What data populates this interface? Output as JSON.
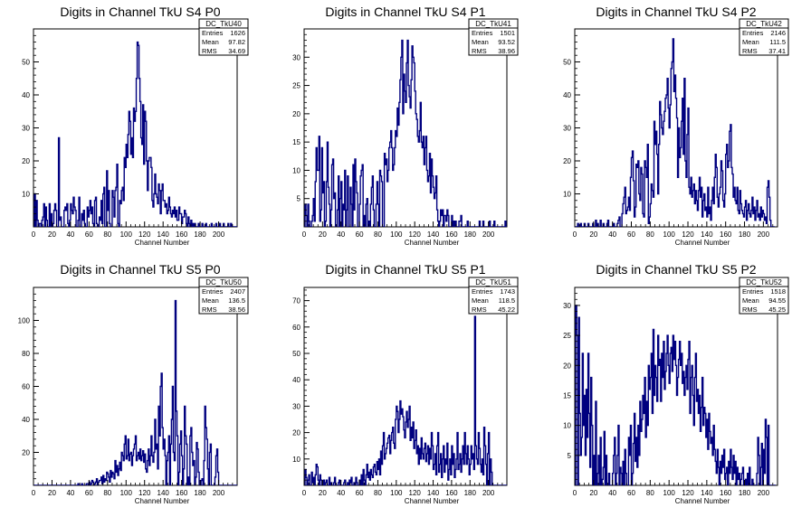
{
  "colors": {
    "line": "#00007f",
    "axis": "#000000",
    "box_border": "#000000",
    "background": "#ffffff"
  },
  "chart_data": [
    {
      "type": "histogram",
      "title": "Digits in Channel TkU S4 P0",
      "xlabel": "Channel Number",
      "xlim": [
        0,
        220
      ],
      "ylim": [
        0,
        60
      ],
      "x_ticks": [
        0,
        20,
        40,
        60,
        80,
        100,
        120,
        140,
        160,
        180,
        200
      ],
      "y_ticks": [
        10,
        20,
        30,
        40,
        50
      ],
      "stats": {
        "name": "DC_TkU40",
        "rows": [
          [
            "Entries",
            "1626"
          ],
          [
            "Mean",
            "97.82"
          ],
          [
            "RMS",
            "34.69"
          ]
        ]
      },
      "values": [
        0,
        10,
        0,
        8,
        2,
        0,
        1,
        1,
        0,
        2,
        3,
        7,
        0,
        6,
        2,
        0,
        0,
        7,
        0,
        4,
        0,
        1,
        5,
        7,
        5,
        0,
        0,
        27,
        2,
        3,
        0,
        0,
        0,
        5,
        6,
        5,
        7,
        1,
        0,
        2,
        7,
        5,
        4,
        9,
        6,
        5,
        0,
        0,
        2,
        9,
        0,
        0,
        4,
        2,
        5,
        1,
        0,
        0,
        6,
        3,
        5,
        8,
        4,
        6,
        1,
        0,
        8,
        9,
        1,
        0,
        0,
        3,
        2,
        8,
        1,
        10,
        12,
        0,
        0,
        17,
        5,
        11,
        1,
        0,
        0,
        11,
        9,
        3,
        11,
        12,
        19,
        1,
        0,
        8,
        7,
        11,
        12,
        8,
        21,
        18,
        25,
        21,
        28,
        35,
        32,
        22,
        27,
        21,
        36,
        32,
        35,
        45,
        56,
        55,
        45,
        38,
        27,
        25,
        37,
        19,
        35,
        32,
        20,
        11,
        20,
        21,
        21,
        18,
        8,
        6,
        10,
        16,
        10,
        9,
        7,
        13,
        11,
        4,
        11,
        13,
        8,
        8,
        6,
        7,
        4,
        5,
        9,
        6,
        4,
        3,
        5,
        4,
        6,
        3,
        5,
        2,
        2,
        6,
        4,
        4,
        1,
        3,
        3,
        5,
        4,
        1,
        0,
        3,
        1,
        0,
        2,
        0,
        1,
        0,
        1,
        0,
        0,
        0,
        1,
        0,
        0,
        0,
        1,
        0,
        0,
        0,
        1,
        0,
        0,
        0,
        0,
        0,
        1,
        0,
        0,
        0,
        0,
        1,
        0,
        0,
        0,
        1,
        0,
        0,
        0,
        1,
        0,
        0,
        0,
        0,
        1,
        0,
        0,
        1,
        0,
        0,
        0,
        0,
        0,
        0,
        0
      ]
    },
    {
      "type": "histogram",
      "title": "Digits in Channel TkU S4 P1",
      "xlabel": "Channel Number",
      "xlim": [
        0,
        220
      ],
      "ylim": [
        0,
        35
      ],
      "x_ticks": [
        0,
        20,
        40,
        60,
        80,
        100,
        120,
        140,
        160,
        180,
        200
      ],
      "y_ticks": [
        5,
        10,
        15,
        20,
        25,
        30
      ],
      "stats": {
        "name": "DC_TkU41",
        "rows": [
          [
            "Entries",
            "1501"
          ],
          [
            "Mean",
            "93.52"
          ],
          [
            "RMS",
            "38.96"
          ]
        ]
      },
      "values": [
        0,
        4,
        2,
        0,
        4,
        1,
        0,
        0,
        1,
        2,
        5,
        1,
        8,
        14,
        10,
        10,
        16,
        1,
        3,
        14,
        6,
        8,
        0,
        1,
        8,
        15,
        7,
        4,
        0,
        3,
        11,
        12,
        5,
        6,
        0,
        0,
        3,
        9,
        0,
        5,
        8,
        0,
        4,
        3,
        10,
        0,
        3,
        9,
        0,
        0,
        7,
        4,
        0,
        11,
        3,
        12,
        8,
        6,
        0,
        0,
        4,
        9,
        10,
        11,
        0,
        2,
        0,
        4,
        5,
        0,
        1,
        0,
        4,
        7,
        9,
        3,
        0,
        0,
        4,
        8,
        4,
        0,
        10,
        9,
        8,
        0,
        0,
        13,
        11,
        12,
        8,
        10,
        14,
        15,
        17,
        14,
        10,
        11,
        14,
        17,
        16,
        21,
        18,
        22,
        26,
        30,
        33,
        20,
        27,
        24,
        22,
        29,
        33,
        25,
        23,
        21,
        26,
        32,
        30,
        29,
        24,
        20,
        19,
        16,
        15,
        17,
        22,
        15,
        14,
        16,
        11,
        14,
        16,
        10,
        8,
        9,
        13,
        6,
        12,
        9,
        7,
        5,
        6,
        9,
        3,
        1,
        0,
        1,
        3,
        2,
        3,
        0,
        2,
        2,
        1,
        3,
        2,
        0,
        0,
        0,
        2,
        0,
        1,
        0,
        1,
        0,
        0,
        0,
        1,
        1,
        2,
        0,
        0,
        0,
        0,
        0,
        0,
        1,
        0,
        0,
        0,
        0,
        0,
        0,
        0,
        0,
        0,
        0,
        0,
        0,
        1,
        0,
        0,
        0,
        1,
        0,
        0,
        0,
        0,
        0,
        0,
        1,
        0,
        0,
        0,
        0,
        1,
        0,
        0,
        0,
        0,
        0,
        0,
        0,
        0,
        0,
        0,
        0,
        1,
        0,
        0,
        0
      ]
    },
    {
      "type": "histogram",
      "title": "Digits in Channel TkU S4 P2",
      "xlabel": "Channel Number",
      "xlim": [
        0,
        215
      ],
      "ylim": [
        0,
        60
      ],
      "x_ticks": [
        0,
        20,
        40,
        60,
        80,
        100,
        120,
        140,
        160,
        180,
        200
      ],
      "y_ticks": [
        10,
        20,
        30,
        40,
        50
      ],
      "stats": {
        "name": "DC_TkU42",
        "rows": [
          [
            "Entries",
            "2146"
          ],
          [
            "Mean",
            "111.5"
          ],
          [
            "RMS",
            "37.41"
          ]
        ]
      },
      "values": [
        0,
        0,
        0,
        1,
        0,
        0,
        1,
        0,
        0,
        0,
        1,
        0,
        0,
        0,
        1,
        0,
        0,
        0,
        0,
        1,
        0,
        0,
        2,
        0,
        1,
        0,
        0,
        2,
        0,
        0,
        1,
        0,
        0,
        0,
        1,
        2,
        0,
        0,
        0,
        0,
        0,
        1,
        0,
        0,
        0,
        1,
        2,
        3,
        0,
        0,
        4,
        7,
        9,
        12,
        4,
        5,
        6,
        9,
        5,
        15,
        21,
        23,
        14,
        3,
        6,
        19,
        18,
        20,
        10,
        8,
        18,
        16,
        4,
        3,
        20,
        18,
        15,
        25,
        1,
        3,
        7,
        13,
        11,
        9,
        32,
        25,
        29,
        22,
        10,
        25,
        38,
        34,
        30,
        28,
        32,
        35,
        39,
        40,
        45,
        36,
        30,
        37,
        48,
        50,
        57,
        41,
        46,
        39,
        33,
        15,
        30,
        21,
        24,
        32,
        39,
        22,
        45,
        20,
        15,
        28,
        36,
        12,
        10,
        15,
        9,
        11,
        13,
        7,
        11,
        8,
        5,
        11,
        15,
        9,
        12,
        3,
        8,
        10,
        5,
        6,
        3,
        12,
        4,
        6,
        2,
        8,
        12,
        7,
        15,
        22,
        18,
        9,
        6,
        10,
        12,
        20,
        17,
        8,
        6,
        10,
        22,
        25,
        18,
        20,
        29,
        31,
        18,
        16,
        9,
        12,
        8,
        7,
        12,
        5,
        4,
        11,
        7,
        5,
        4,
        3,
        6,
        8,
        2,
        5,
        7,
        4,
        3,
        5,
        9,
        4,
        6,
        2,
        5,
        8,
        3,
        4,
        2,
        6,
        3,
        5,
        4,
        2,
        3,
        1,
        12,
        14,
        9,
        2,
        0,
        0,
        0,
        0
      ]
    },
    {
      "type": "histogram",
      "title": "Digits in Channel TkU S5 P0",
      "xlabel": "Channel Number",
      "xlim": [
        0,
        220
      ],
      "ylim": [
        0,
        120
      ],
      "x_ticks": [
        0,
        20,
        40,
        60,
        80,
        100,
        120,
        140,
        160,
        180,
        200
      ],
      "y_ticks": [
        20,
        40,
        60,
        80,
        100
      ],
      "stats": {
        "name": "DC_TkU50",
        "rows": [
          [
            "Entries",
            "2407"
          ],
          [
            "Mean",
            "136.5"
          ],
          [
            "RMS",
            "38.56"
          ]
        ]
      },
      "values": [
        0,
        0,
        0,
        0,
        0,
        0,
        0,
        0,
        0,
        0,
        0,
        0,
        0,
        0,
        0,
        0,
        0,
        0,
        0,
        0,
        0,
        0,
        0,
        0,
        0,
        0,
        0,
        0,
        0,
        0,
        0,
        0,
        0,
        0,
        0,
        0,
        0,
        0,
        0,
        0,
        0,
        0,
        0,
        0,
        0,
        0,
        0,
        0,
        1,
        0,
        0,
        0,
        1,
        0,
        0,
        0,
        0,
        1,
        1,
        0,
        2,
        0,
        1,
        3,
        2,
        0,
        1,
        2,
        4,
        0,
        2,
        3,
        3,
        5,
        1,
        6,
        2,
        4,
        3,
        8,
        7,
        5,
        2,
        9,
        5,
        8,
        7,
        4,
        15,
        8,
        12,
        6,
        10,
        14,
        9,
        20,
        18,
        15,
        25,
        30,
        16,
        18,
        28,
        15,
        19,
        20,
        12,
        18,
        22,
        25,
        30,
        15,
        18,
        20,
        16,
        22,
        15,
        18,
        21,
        14,
        19,
        10,
        8,
        15,
        22,
        12,
        18,
        30,
        18,
        14,
        20,
        40,
        22,
        25,
        10,
        48,
        30,
        60,
        68,
        35,
        22,
        28,
        18,
        0,
        15,
        20,
        30,
        0,
        25,
        40,
        60,
        20,
        15,
        112,
        45,
        30,
        0,
        8,
        25,
        33,
        18,
        0,
        10,
        48,
        30,
        25,
        0,
        5,
        0,
        30,
        35,
        20,
        12,
        15,
        0,
        5,
        26,
        22,
        8,
        0,
        0,
        3,
        4,
        0,
        15,
        48,
        35,
        28,
        10,
        0,
        20,
        25,
        0,
        0,
        0,
        0,
        5,
        18,
        22,
        8,
        0,
        0,
        0,
        0,
        0,
        0,
        0,
        0,
        0,
        0,
        0,
        0,
        0,
        0,
        0,
        0,
        0,
        0,
        0,
        0,
        0,
        0
      ]
    },
    {
      "type": "histogram",
      "title": "Digits in Channel TkU S5 P1",
      "xlabel": "Channel Number",
      "xlim": [
        0,
        220
      ],
      "ylim": [
        0,
        75
      ],
      "x_ticks": [
        0,
        20,
        40,
        60,
        80,
        100,
        120,
        140,
        160,
        180,
        200
      ],
      "y_ticks": [
        10,
        20,
        30,
        40,
        50,
        60,
        70
      ],
      "stats": {
        "name": "DC_TkU51",
        "rows": [
          [
            "Entries",
            "1743"
          ],
          [
            "Mean",
            "118.5"
          ],
          [
            "RMS",
            "45.22"
          ]
        ]
      },
      "values": [
        0,
        6,
        3,
        0,
        2,
        4,
        0,
        0,
        5,
        1,
        3,
        0,
        4,
        8,
        7,
        2,
        0,
        4,
        2,
        0,
        0,
        2,
        0,
        1,
        2,
        0,
        0,
        3,
        0,
        1,
        0,
        0,
        1,
        3,
        0,
        0,
        0,
        1,
        2,
        0,
        0,
        0,
        0,
        1,
        2,
        0,
        0,
        1,
        0,
        2,
        1,
        3,
        0,
        0,
        1,
        0,
        3,
        1,
        0,
        0,
        2,
        0,
        4,
        0,
        6,
        2,
        0,
        4,
        8,
        3,
        5,
        2,
        6,
        4,
        3,
        7,
        8,
        5,
        4,
        9,
        6,
        10,
        4,
        13,
        8,
        15,
        20,
        10,
        12,
        14,
        16,
        18,
        19,
        12,
        17,
        20,
        22,
        16,
        14,
        25,
        30,
        28,
        20,
        25,
        32,
        27,
        29,
        26,
        21,
        18,
        24,
        28,
        22,
        25,
        30,
        17,
        22,
        18,
        24,
        14,
        17,
        21,
        12,
        15,
        8,
        14,
        10,
        18,
        12,
        10,
        14,
        16,
        9,
        12,
        15,
        8,
        14,
        10,
        20,
        15,
        6,
        8,
        12,
        4,
        15,
        20,
        5,
        8,
        12,
        3,
        10,
        15,
        5,
        10,
        8,
        16,
        2,
        6,
        10,
        4,
        15,
        8,
        12,
        3,
        6,
        10,
        20,
        6,
        8,
        12,
        5,
        10,
        15,
        8,
        20,
        12,
        8,
        15,
        10,
        4,
        8,
        15,
        10,
        12,
        6,
        64,
        15,
        10,
        8,
        20,
        14,
        8,
        5,
        10,
        4,
        22,
        15,
        8,
        0,
        12,
        20,
        0,
        10,
        5,
        0,
        0,
        0,
        0,
        0,
        0,
        0,
        0,
        0,
        0,
        0,
        0,
        0,
        0,
        0,
        0,
        0
      ]
    },
    {
      "type": "histogram",
      "title": "Digits in Channel TkU S5 P2",
      "xlabel": "Channel Number",
      "xlim": [
        0,
        215
      ],
      "ylim": [
        0,
        33
      ],
      "x_ticks": [
        0,
        20,
        40,
        60,
        80,
        100,
        120,
        140,
        160,
        180,
        200
      ],
      "y_ticks": [
        5,
        10,
        15,
        20,
        25,
        30
      ],
      "stats": {
        "name": "DC_TkU52",
        "rows": [
          [
            "Entries",
            "1518"
          ],
          [
            "Mean",
            "94.55"
          ],
          [
            "RMS",
            "45.25"
          ]
        ]
      },
      "values": [
        0,
        30,
        25,
        0,
        28,
        12,
        5,
        8,
        22,
        10,
        15,
        5,
        16,
        8,
        22,
        12,
        3,
        18,
        10,
        0,
        5,
        0,
        14,
        0,
        2,
        5,
        0,
        8,
        0,
        1,
        3,
        9,
        0,
        5,
        0,
        0,
        2,
        0,
        0,
        0,
        2,
        5,
        8,
        0,
        2,
        5,
        10,
        0,
        3,
        2,
        0,
        4,
        0,
        6,
        2,
        0,
        0,
        8,
        5,
        10,
        0,
        2,
        7,
        12,
        4,
        8,
        3,
        10,
        5,
        14,
        9,
        11,
        15,
        12,
        18,
        8,
        14,
        10,
        20,
        16,
        18,
        22,
        12,
        26,
        15,
        20,
        18,
        14,
        25,
        20,
        21,
        14,
        22,
        18,
        24,
        16,
        19,
        22,
        25,
        20,
        17,
        22,
        23,
        19,
        25,
        21,
        24,
        20,
        15,
        18,
        21,
        24,
        20,
        22,
        17,
        19,
        15,
        18,
        20,
        16,
        21,
        24,
        12,
        18,
        20,
        15,
        10,
        18,
        22,
        14,
        16,
        12,
        15,
        9,
        13,
        18,
        10,
        13,
        12,
        8,
        11,
        6,
        12,
        9,
        7,
        8,
        5,
        10,
        6,
        4,
        2,
        6,
        3,
        0,
        4,
        2,
        5,
        3,
        6,
        1,
        2,
        3,
        0,
        4,
        2,
        6,
        3,
        1,
        5,
        2,
        4,
        0,
        3,
        1,
        2,
        0,
        1,
        2,
        3,
        0,
        0,
        1,
        0,
        2,
        0,
        3,
        0,
        0,
        1,
        0,
        0,
        0,
        0,
        2,
        8,
        5,
        0,
        3,
        7,
        0,
        6,
        2,
        11,
        8,
        0,
        10,
        0,
        0,
        0,
        0,
        0,
        0,
        0
      ]
    }
  ]
}
